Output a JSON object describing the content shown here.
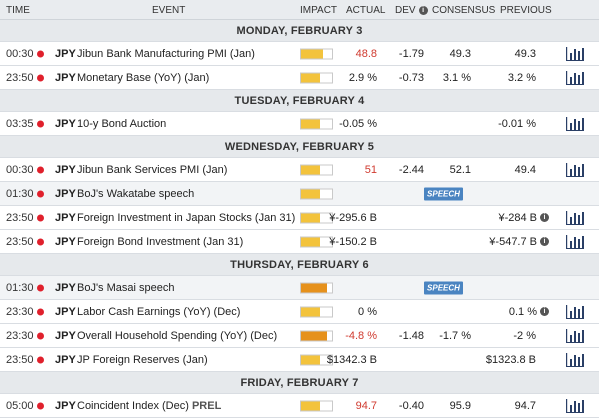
{
  "header": {
    "time": "TIME",
    "event": "EVENT",
    "impact": "IMPACT",
    "actual": "ACTUAL",
    "dev": "DEV",
    "consensus": "CONSENSUS",
    "previous": "PREVIOUS"
  },
  "days": [
    {
      "label": "MONDAY, FEBRUARY 3"
    },
    {
      "label": "TUESDAY, FEBRUARY 4"
    },
    {
      "label": "WEDNESDAY, FEBRUARY 5"
    },
    {
      "label": "THURSDAY, FEBRUARY 6"
    },
    {
      "label": "FRIDAY, FEBRUARY 7"
    }
  ],
  "events": [
    {
      "time": "00:30",
      "currency": "JPY",
      "name": "Jibun Bank Manufacturing PMI (Jan)",
      "impact": 0.7,
      "actual": "48.8",
      "dev": "-1.79",
      "consensus": "49.3",
      "previous": "49.3"
    },
    {
      "time": "23:50",
      "currency": "JPY",
      "name": "Monetary Base (YoY) (Jan)",
      "impact": 0.6,
      "actual": "2.9 %",
      "dev": "-0.73",
      "consensus": "3.1 %",
      "previous": "3.2 %"
    },
    {
      "time": "03:35",
      "currency": "JPY",
      "name": "10-y Bond Auction",
      "impact": 0.6,
      "actual": "-0.05 %",
      "previous": "-0.01 %"
    },
    {
      "time": "00:30",
      "currency": "JPY",
      "name": "Jibun Bank Services PMI (Jan)",
      "impact": 0.6,
      "actual": "51",
      "dev": "-2.44",
      "consensus": "52.1",
      "previous": "49.4"
    },
    {
      "time": "01:30",
      "currency": "JPY",
      "name": "BoJ's Wakatabe speech",
      "impact": 0.6,
      "badge": "SPEECH"
    },
    {
      "time": "23:50",
      "currency": "JPY",
      "name": "Foreign Investment in Japan Stocks (Jan 31)",
      "impact": 0.6,
      "actual": "¥-295.6 B",
      "previous": "¥-284 B"
    },
    {
      "time": "23:50",
      "currency": "JPY",
      "name": "Foreign Bond Investment (Jan 31)",
      "impact": 0.6,
      "actual": "¥-150.2 B",
      "previous": "¥-547.7 B"
    },
    {
      "time": "01:30",
      "currency": "JPY",
      "name": "BoJ's Masai speech",
      "impact": 0.85,
      "badge": "SPEECH"
    },
    {
      "time": "23:30",
      "currency": "JPY",
      "name": "Labor Cash Earnings (YoY) (Dec)",
      "impact": 0.6,
      "actual": "0 %",
      "previous": "0.1 %"
    },
    {
      "time": "23:30",
      "currency": "JPY",
      "name": "Overall Household Spending (YoY) (Dec)",
      "impact": 0.85,
      "actual": "-4.8 %",
      "dev": "-1.48",
      "consensus": "-1.7 %",
      "previous": "-2 %"
    },
    {
      "time": "23:50",
      "currency": "JPY",
      "name": "JP Foreign Reserves (Jan)",
      "impact": 0.6,
      "actual": "$1342.3 B",
      "previous": "$1323.8 B"
    },
    {
      "time": "05:00",
      "currency": "JPY",
      "name": "Coincident Index (Dec)",
      "prel": "PREL",
      "impact": 0.6,
      "actual": "94.7",
      "dev": "-0.40",
      "consensus": "95.9",
      "previous": "94.7"
    }
  ],
  "colors": {
    "header_bg": "#e9ecef",
    "day_bg": "#e6e9ec",
    "alt_row": "#f2f4f6",
    "impact_low": "#f3c33c",
    "impact_med": "#e6911c",
    "negative": "#d03a2f",
    "speech_badge": "#4a84c1",
    "flag_red": "#e0202c"
  },
  "icons": {
    "info": "info-icon",
    "chart": "bar-chart-icon",
    "flag": "japan-flag-icon"
  }
}
